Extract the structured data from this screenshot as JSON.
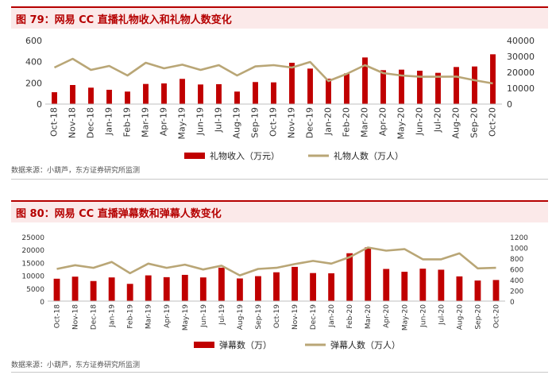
{
  "colors": {
    "bar": "#c00000",
    "line": "#b9a676",
    "accent": "#b50000",
    "axis": "#bfbfbf"
  },
  "chart_data": [
    {
      "type": "bar+line",
      "title": "图 79：网易 CC 直播礼物收入和礼物人数变化",
      "source": "数据来源：小葫芦，东方证券研究所监测",
      "categories": [
        "Oct-18",
        "Nov-18",
        "Dec-18",
        "Jan-19",
        "Feb-19",
        "Mar-19",
        "Apr-19",
        "May-19",
        "Jun-19",
        "Jul-19",
        "Aug-19",
        "Sep-19",
        "Oct-19",
        "Nov-19",
        "Dec-19",
        "Jan-20",
        "Feb-20",
        "Mar-20",
        "Apr-20",
        "May-20",
        "Jun-20",
        "Jul-20",
        "Aug-20",
        "Sep-20",
        "Oct-20"
      ],
      "series": [
        {
          "name": "礼物收入（万元）",
          "kind": "bar",
          "axis": "left",
          "values": [
            112,
            180,
            155,
            135,
            118,
            190,
            195,
            238,
            185,
            188,
            118,
            208,
            205,
            390,
            335,
            240,
            290,
            440,
            320,
            325,
            315,
            295,
            350,
            355,
            470
          ]
        },
        {
          "name": "礼物人数（万人）",
          "kind": "line",
          "axis": "right",
          "values": [
            23000,
            28500,
            21500,
            24000,
            18000,
            26000,
            22500,
            24800,
            21500,
            24500,
            18000,
            23700,
            24500,
            23000,
            26500,
            14500,
            19000,
            24500,
            19500,
            18000,
            17200,
            17200,
            17300,
            15000,
            13000
          ]
        }
      ],
      "ylim_left": [
        0,
        600
      ],
      "yticks_left": [
        0,
        200,
        400,
        600
      ],
      "ylim_right": [
        0,
        40000
      ],
      "yticks_right": [
        0,
        10000,
        20000,
        30000,
        40000
      ]
    },
    {
      "type": "bar+line",
      "title": "图 80：网易 CC 直播弹幕数和弹幕人数变化",
      "source": "数据来源：小葫芦，东方证券研究所监测",
      "categories": [
        "Oct-18",
        "Nov-18",
        "Dec-18",
        "Jan-19",
        "Feb-19",
        "Mar-19",
        "Apr-19",
        "May-19",
        "Jun-19",
        "Jul-19",
        "Aug-19",
        "Sep-19",
        "Oct-19",
        "Nov-19",
        "Dec-19",
        "Jan-20",
        "Feb-20",
        "Mar-20",
        "Apr-20",
        "May-20",
        "Jun-20",
        "Jul-20",
        "Aug-20",
        "Sep-20",
        "Oct-20"
      ],
      "series": [
        {
          "name": "弹幕数（万）",
          "kind": "bar",
          "axis": "left",
          "values": [
            8700,
            9500,
            7800,
            9200,
            6700,
            10000,
            9300,
            10200,
            9200,
            13000,
            8800,
            9700,
            11200,
            13300,
            10900,
            10800,
            18600,
            20900,
            12500,
            11400,
            12600,
            12200,
            9600,
            8000,
            8200
          ]
        },
        {
          "name": "弹幕人数（万人）",
          "kind": "line",
          "axis": "right",
          "values": [
            600,
            670,
            620,
            730,
            520,
            700,
            620,
            680,
            590,
            660,
            480,
            600,
            620,
            690,
            750,
            700,
            820,
            1000,
            940,
            970,
            780,
            780,
            890,
            610,
            620
          ]
        }
      ],
      "ylim_left": [
        0,
        25000
      ],
      "yticks_left": [
        0,
        5000,
        10000,
        15000,
        20000,
        25000
      ],
      "ylim_right": [
        0,
        1200
      ],
      "yticks_right": [
        0,
        200,
        400,
        600,
        800,
        1000,
        1200
      ]
    }
  ]
}
